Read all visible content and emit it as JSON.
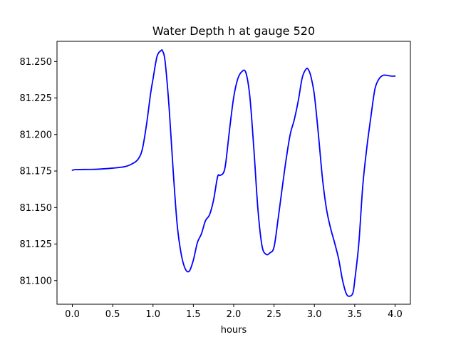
{
  "chart_data": {
    "type": "line",
    "title": "Water Depth h at gauge 520",
    "xlabel": "hours",
    "ylabel": "",
    "xlim": [
      -0.19,
      4.19
    ],
    "ylim": [
      81.0838,
      81.2638
    ],
    "xticks": [
      0.0,
      0.5,
      1.0,
      1.5,
      2.0,
      2.5,
      3.0,
      3.5,
      4.0
    ],
    "xtick_labels": [
      "0.0",
      "0.5",
      "1.0",
      "1.5",
      "2.0",
      "2.5",
      "3.0",
      "3.5",
      "4.0"
    ],
    "yticks": [
      81.1,
      81.125,
      81.15,
      81.175,
      81.2,
      81.225,
      81.25
    ],
    "ytick_labels": [
      "81.100",
      "81.125",
      "81.150",
      "81.175",
      "81.200",
      "81.225",
      "81.250"
    ],
    "grid": false,
    "legend": "none",
    "series": [
      {
        "color": "#0000ff",
        "x": [
          0.0,
          0.05,
          0.3,
          0.5,
          0.65,
          0.75,
          0.82,
          0.87,
          0.92,
          0.97,
          1.0,
          1.05,
          1.1,
          1.12,
          1.15,
          1.2,
          1.25,
          1.3,
          1.35,
          1.4,
          1.45,
          1.5,
          1.55,
          1.6,
          1.65,
          1.7,
          1.75,
          1.8,
          1.83,
          1.87,
          1.9,
          1.95,
          2.0,
          2.05,
          2.1,
          2.15,
          2.2,
          2.25,
          2.3,
          2.35,
          2.4,
          2.45,
          2.5,
          2.55,
          2.6,
          2.65,
          2.7,
          2.75,
          2.8,
          2.85,
          2.9,
          2.93,
          2.96,
          3.0,
          3.05,
          3.1,
          3.15,
          3.2,
          3.25,
          3.3,
          3.35,
          3.4,
          3.45,
          3.48,
          3.5,
          3.55,
          3.6,
          3.65,
          3.7,
          3.75,
          3.8,
          3.85,
          3.9,
          3.95,
          4.0
        ],
        "y": [
          81.1755,
          81.176,
          81.1762,
          81.177,
          81.178,
          81.1802,
          81.1835,
          81.1905,
          81.207,
          81.228,
          81.238,
          81.2535,
          81.2575,
          81.257,
          81.25,
          81.218,
          81.175,
          81.138,
          81.118,
          81.108,
          81.1065,
          81.114,
          81.126,
          81.132,
          81.141,
          81.145,
          81.155,
          81.171,
          81.172,
          81.1735,
          81.18,
          81.204,
          81.2255,
          81.238,
          81.243,
          81.2425,
          81.226,
          81.19,
          81.149,
          81.124,
          81.118,
          81.119,
          81.123,
          81.142,
          81.163,
          81.183,
          81.2,
          81.21,
          81.223,
          81.239,
          81.245,
          81.244,
          81.239,
          81.227,
          81.2,
          81.17,
          81.149,
          81.136,
          81.126,
          81.115,
          81.1,
          81.0905,
          81.0895,
          81.092,
          81.1,
          81.125,
          81.165,
          81.191,
          81.212,
          81.231,
          81.238,
          81.2405,
          81.2405,
          81.24,
          81.24
        ]
      }
    ]
  }
}
